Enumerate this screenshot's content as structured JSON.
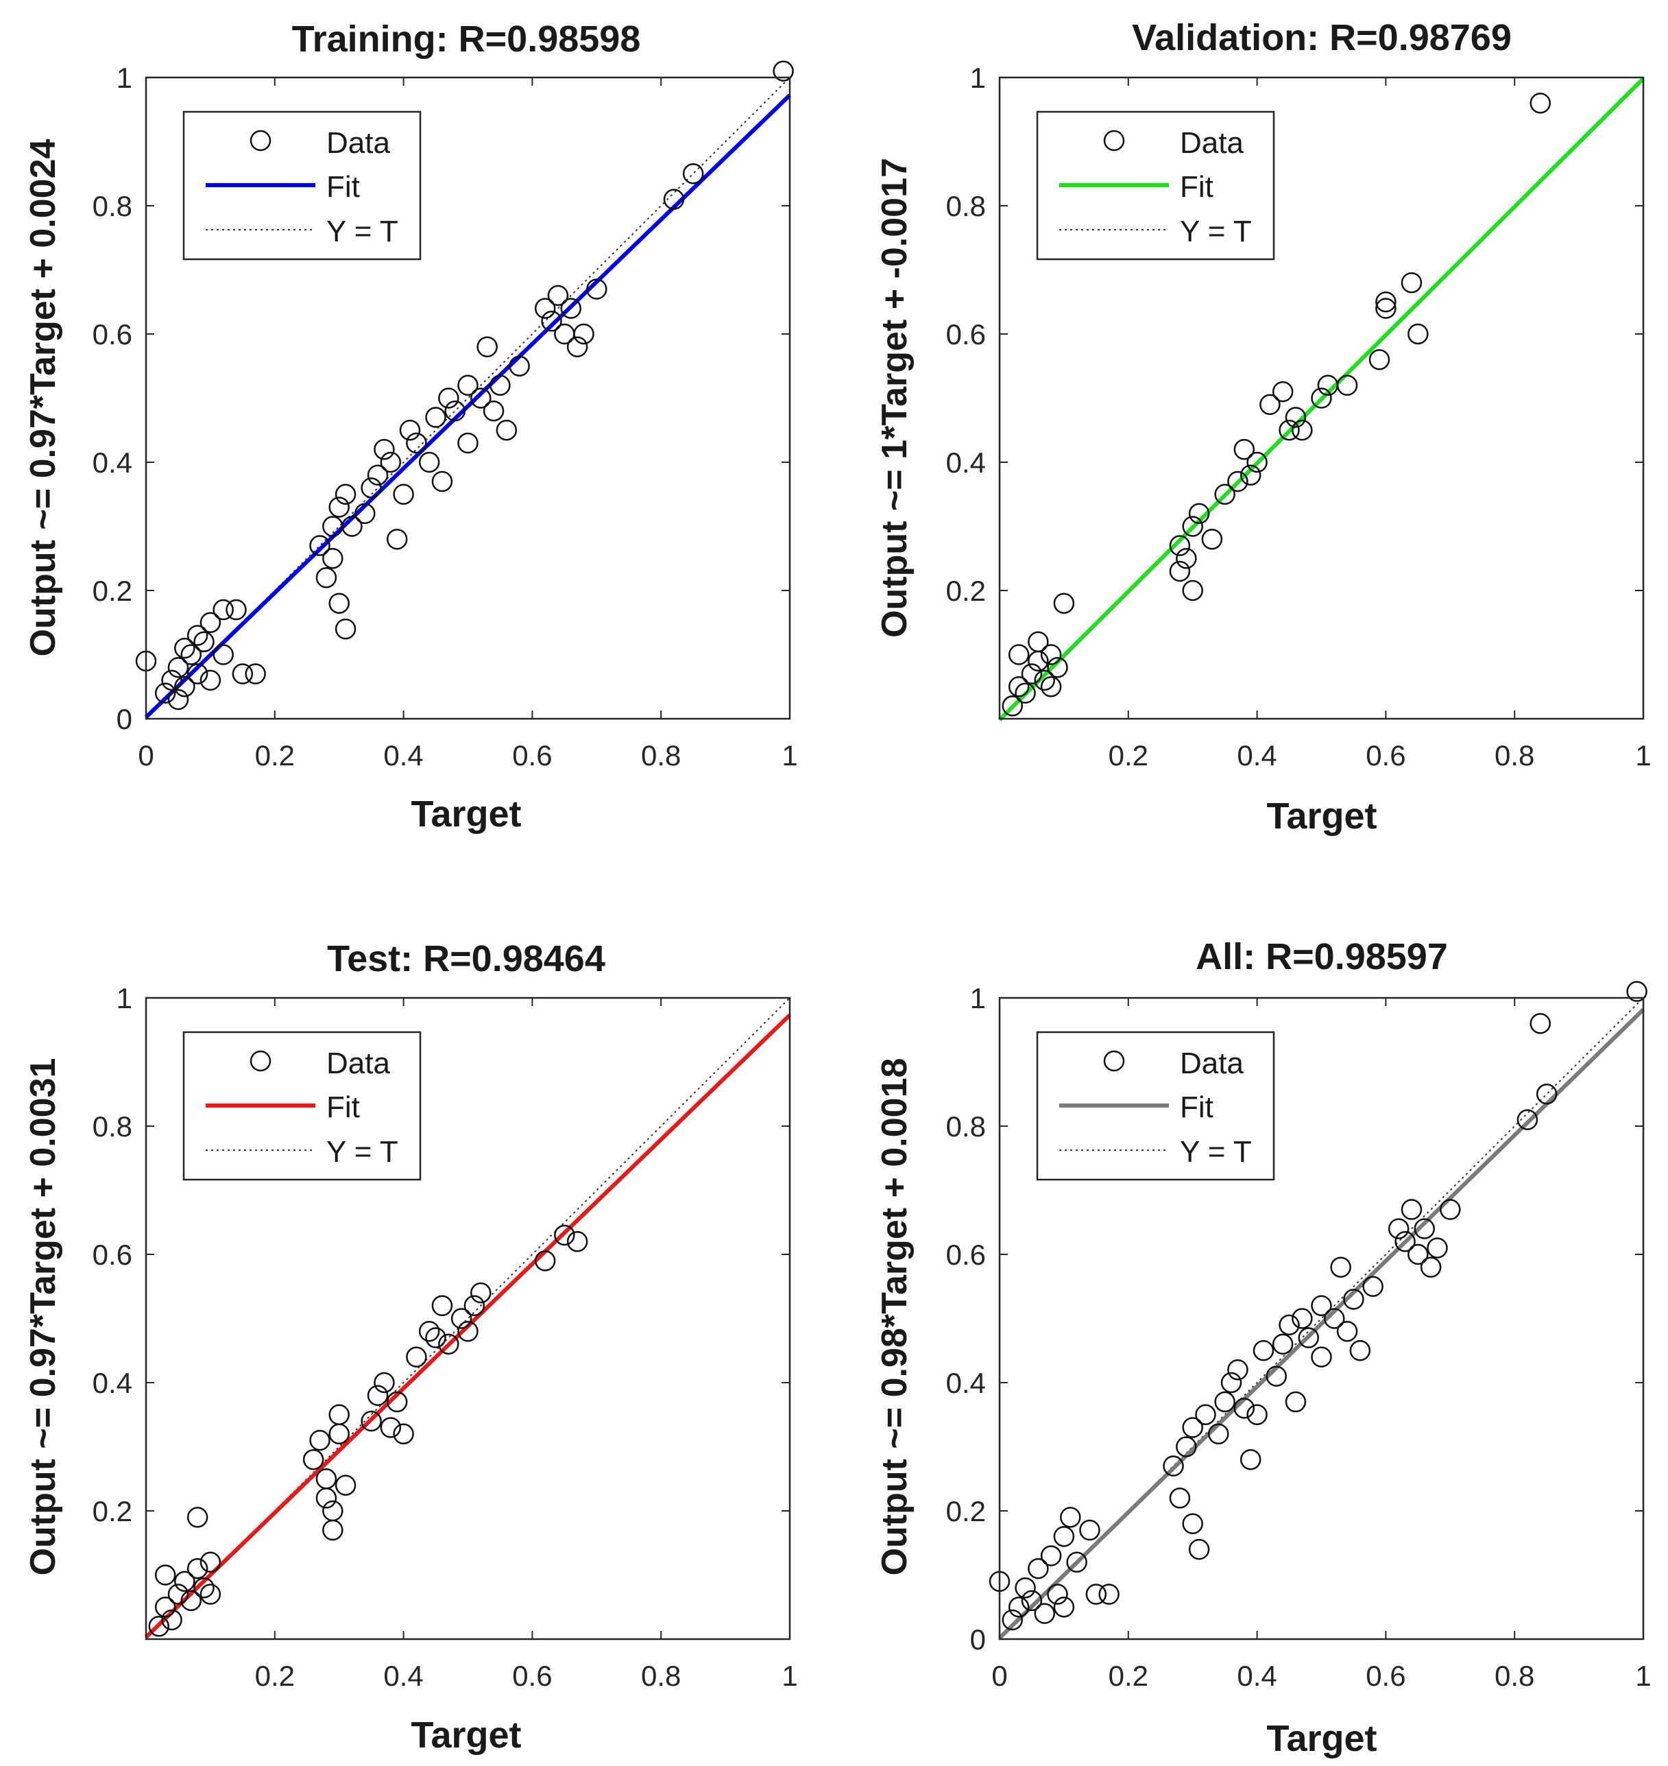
{
  "chart_data": [
    {
      "type": "scatter",
      "title": "Training: R=0.98598",
      "xlabel": "Target",
      "ylabel": "Output ~= 0.97*Target + 0.0024",
      "xlim": [
        0,
        1
      ],
      "ylim": [
        0,
        1
      ],
      "xticks": [
        "0",
        "0.2",
        "0.4",
        "0.6",
        "0.8",
        "1"
      ],
      "yticks": [
        "0",
        "0.2",
        "0.4",
        "0.6",
        "0.8",
        "1"
      ],
      "fit": {
        "slope": 0.97,
        "intercept": 0.0024,
        "color": "#0000e6"
      },
      "legend": {
        "data": "Data",
        "fit": "Fit",
        "ideal": "Y = T"
      },
      "points": [
        [
          0.0,
          0.09
        ],
        [
          0.03,
          0.04
        ],
        [
          0.04,
          0.06
        ],
        [
          0.05,
          0.08
        ],
        [
          0.06,
          0.05
        ],
        [
          0.07,
          0.1
        ],
        [
          0.08,
          0.07
        ],
        [
          0.09,
          0.12
        ],
        [
          0.1,
          0.15
        ],
        [
          0.12,
          0.17
        ],
        [
          0.14,
          0.17
        ],
        [
          0.15,
          0.07
        ],
        [
          0.17,
          0.07
        ],
        [
          0.05,
          0.03
        ],
        [
          0.06,
          0.11
        ],
        [
          0.08,
          0.13
        ],
        [
          0.1,
          0.06
        ],
        [
          0.12,
          0.1
        ],
        [
          0.27,
          0.27
        ],
        [
          0.28,
          0.22
        ],
        [
          0.29,
          0.3
        ],
        [
          0.3,
          0.18
        ],
        [
          0.31,
          0.14
        ],
        [
          0.29,
          0.25
        ],
        [
          0.3,
          0.33
        ],
        [
          0.31,
          0.35
        ],
        [
          0.32,
          0.3
        ],
        [
          0.34,
          0.32
        ],
        [
          0.35,
          0.36
        ],
        [
          0.36,
          0.38
        ],
        [
          0.37,
          0.42
        ],
        [
          0.38,
          0.4
        ],
        [
          0.39,
          0.28
        ],
        [
          0.4,
          0.35
        ],
        [
          0.41,
          0.45
        ],
        [
          0.42,
          0.43
        ],
        [
          0.44,
          0.4
        ],
        [
          0.45,
          0.47
        ],
        [
          0.46,
          0.37
        ],
        [
          0.47,
          0.5
        ],
        [
          0.48,
          0.48
        ],
        [
          0.5,
          0.52
        ],
        [
          0.5,
          0.43
        ],
        [
          0.52,
          0.5
        ],
        [
          0.53,
          0.58
        ],
        [
          0.54,
          0.48
        ],
        [
          0.55,
          0.52
        ],
        [
          0.56,
          0.45
        ],
        [
          0.58,
          0.55
        ],
        [
          0.62,
          0.64
        ],
        [
          0.63,
          0.62
        ],
        [
          0.64,
          0.66
        ],
        [
          0.65,
          0.6
        ],
        [
          0.66,
          0.64
        ],
        [
          0.67,
          0.58
        ],
        [
          0.68,
          0.6
        ],
        [
          0.7,
          0.67
        ],
        [
          0.82,
          0.81
        ],
        [
          0.85,
          0.85
        ],
        [
          0.99,
          1.01
        ]
      ]
    },
    {
      "type": "scatter",
      "title": "Validation: R=0.98769",
      "xlabel": "Target",
      "ylabel": "Output ~= 1*Target + -0.0017",
      "xlim": [
        0,
        1
      ],
      "ylim": [
        0,
        1
      ],
      "xticks": [
        "",
        "0.2",
        "0.4",
        "0.6",
        "0.8",
        "1"
      ],
      "yticks": [
        "",
        "0.2",
        "0.4",
        "0.6",
        "0.8",
        "1"
      ],
      "fit": {
        "slope": 1.0,
        "intercept": -0.0017,
        "color": "#1ee01e"
      },
      "legend": {
        "data": "Data",
        "fit": "Fit",
        "ideal": "Y = T"
      },
      "points": [
        [
          0.02,
          0.02
        ],
        [
          0.03,
          0.05
        ],
        [
          0.03,
          0.1
        ],
        [
          0.04,
          0.04
        ],
        [
          0.05,
          0.07
        ],
        [
          0.06,
          0.09
        ],
        [
          0.06,
          0.12
        ],
        [
          0.07,
          0.06
        ],
        [
          0.08,
          0.05
        ],
        [
          0.08,
          0.1
        ],
        [
          0.09,
          0.08
        ],
        [
          0.1,
          0.18
        ],
        [
          0.28,
          0.27
        ],
        [
          0.28,
          0.23
        ],
        [
          0.29,
          0.25
        ],
        [
          0.3,
          0.3
        ],
        [
          0.3,
          0.2
        ],
        [
          0.31,
          0.32
        ],
        [
          0.33,
          0.28
        ],
        [
          0.35,
          0.35
        ],
        [
          0.37,
          0.37
        ],
        [
          0.38,
          0.42
        ],
        [
          0.39,
          0.38
        ],
        [
          0.4,
          0.4
        ],
        [
          0.42,
          0.49
        ],
        [
          0.44,
          0.51
        ],
        [
          0.45,
          0.45
        ],
        [
          0.46,
          0.47
        ],
        [
          0.47,
          0.45
        ],
        [
          0.5,
          0.5
        ],
        [
          0.51,
          0.52
        ],
        [
          0.54,
          0.52
        ],
        [
          0.59,
          0.56
        ],
        [
          0.6,
          0.64
        ],
        [
          0.6,
          0.65
        ],
        [
          0.64,
          0.68
        ],
        [
          0.65,
          0.6
        ],
        [
          0.84,
          0.96
        ]
      ]
    },
    {
      "type": "scatter",
      "title": "Test: R=0.98464",
      "xlabel": "Target",
      "ylabel": "Output ~= 0.97*Target + 0.0031",
      "xlim": [
        0,
        1
      ],
      "ylim": [
        0,
        1
      ],
      "xticks": [
        "",
        "0.2",
        "0.4",
        "0.6",
        "0.8",
        "1"
      ],
      "yticks": [
        "",
        "0.2",
        "0.4",
        "0.6",
        "0.8",
        "1"
      ],
      "fit": {
        "slope": 0.97,
        "intercept": 0.0031,
        "color": "#e61a1a"
      },
      "legend": {
        "data": "Data",
        "fit": "Fit",
        "ideal": "Y = T"
      },
      "points": [
        [
          0.02,
          0.02
        ],
        [
          0.03,
          0.05
        ],
        [
          0.03,
          0.1
        ],
        [
          0.04,
          0.03
        ],
        [
          0.05,
          0.07
        ],
        [
          0.06,
          0.09
        ],
        [
          0.07,
          0.06
        ],
        [
          0.08,
          0.11
        ],
        [
          0.09,
          0.08
        ],
        [
          0.1,
          0.07
        ],
        [
          0.1,
          0.12
        ],
        [
          0.08,
          0.19
        ],
        [
          0.26,
          0.28
        ],
        [
          0.27,
          0.31
        ],
        [
          0.28,
          0.22
        ],
        [
          0.28,
          0.25
        ],
        [
          0.29,
          0.2
        ],
        [
          0.29,
          0.17
        ],
        [
          0.3,
          0.32
        ],
        [
          0.3,
          0.35
        ],
        [
          0.31,
          0.24
        ],
        [
          0.35,
          0.34
        ],
        [
          0.36,
          0.38
        ],
        [
          0.37,
          0.4
        ],
        [
          0.38,
          0.33
        ],
        [
          0.39,
          0.37
        ],
        [
          0.4,
          0.32
        ],
        [
          0.42,
          0.44
        ],
        [
          0.44,
          0.48
        ],
        [
          0.45,
          0.47
        ],
        [
          0.46,
          0.52
        ],
        [
          0.47,
          0.46
        ],
        [
          0.49,
          0.5
        ],
        [
          0.5,
          0.48
        ],
        [
          0.51,
          0.52
        ],
        [
          0.52,
          0.54
        ],
        [
          0.62,
          0.59
        ],
        [
          0.65,
          0.63
        ],
        [
          0.67,
          0.62
        ]
      ]
    },
    {
      "type": "scatter",
      "title": "All: R=0.98597",
      "xlabel": "Target",
      "ylabel": "Output ~= 0.98*Target + 0.0018",
      "xlim": [
        0,
        1
      ],
      "ylim": [
        0,
        1
      ],
      "xticks": [
        "0",
        "0.2",
        "0.4",
        "0.6",
        "0.8",
        "1"
      ],
      "yticks": [
        "0",
        "0.2",
        "0.4",
        "0.6",
        "0.8",
        "1"
      ],
      "fit": {
        "slope": 0.98,
        "intercept": 0.0018,
        "color": "#7a7a7a"
      },
      "legend": {
        "data": "Data",
        "fit": "Fit",
        "ideal": "Y = T"
      },
      "points": [
        [
          0.0,
          0.09
        ],
        [
          0.02,
          0.03
        ],
        [
          0.03,
          0.05
        ],
        [
          0.04,
          0.08
        ],
        [
          0.05,
          0.06
        ],
        [
          0.06,
          0.11
        ],
        [
          0.07,
          0.04
        ],
        [
          0.08,
          0.13
        ],
        [
          0.09,
          0.07
        ],
        [
          0.1,
          0.16
        ],
        [
          0.11,
          0.19
        ],
        [
          0.12,
          0.12
        ],
        [
          0.14,
          0.17
        ],
        [
          0.15,
          0.07
        ],
        [
          0.17,
          0.07
        ],
        [
          0.1,
          0.05
        ],
        [
          0.27,
          0.27
        ],
        [
          0.28,
          0.22
        ],
        [
          0.29,
          0.3
        ],
        [
          0.3,
          0.18
        ],
        [
          0.31,
          0.14
        ],
        [
          0.3,
          0.33
        ],
        [
          0.32,
          0.35
        ],
        [
          0.34,
          0.32
        ],
        [
          0.35,
          0.37
        ],
        [
          0.36,
          0.4
        ],
        [
          0.37,
          0.42
        ],
        [
          0.38,
          0.36
        ],
        [
          0.39,
          0.28
        ],
        [
          0.4,
          0.35
        ],
        [
          0.41,
          0.45
        ],
        [
          0.43,
          0.41
        ],
        [
          0.44,
          0.46
        ],
        [
          0.45,
          0.49
        ],
        [
          0.46,
          0.37
        ],
        [
          0.47,
          0.5
        ],
        [
          0.48,
          0.47
        ],
        [
          0.5,
          0.52
        ],
        [
          0.5,
          0.44
        ],
        [
          0.52,
          0.5
        ],
        [
          0.53,
          0.58
        ],
        [
          0.54,
          0.48
        ],
        [
          0.55,
          0.53
        ],
        [
          0.56,
          0.45
        ],
        [
          0.58,
          0.55
        ],
        [
          0.62,
          0.64
        ],
        [
          0.63,
          0.62
        ],
        [
          0.64,
          0.67
        ],
        [
          0.65,
          0.6
        ],
        [
          0.66,
          0.64
        ],
        [
          0.67,
          0.58
        ],
        [
          0.68,
          0.61
        ],
        [
          0.7,
          0.67
        ],
        [
          0.82,
          0.81
        ],
        [
          0.84,
          0.96
        ],
        [
          0.85,
          0.85
        ],
        [
          0.99,
          1.01
        ]
      ]
    }
  ]
}
